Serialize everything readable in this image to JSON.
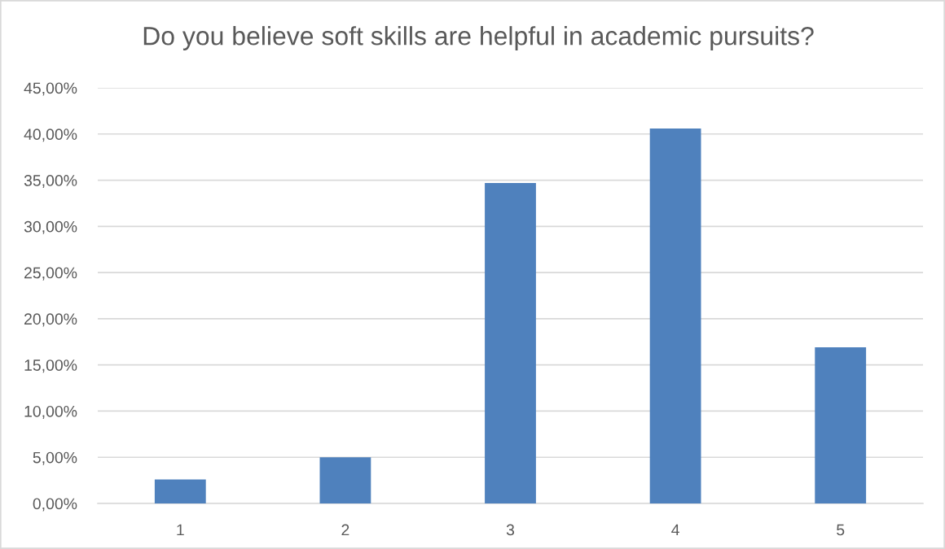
{
  "chart_data": {
    "type": "bar",
    "title": "Do you believe soft skills are helpful in academic pursuits?",
    "categories": [
      "1",
      "2",
      "3",
      "4",
      "5"
    ],
    "series": [
      {
        "color": "#4f81bd",
        "values": [
          2.6,
          5.0,
          34.7,
          40.6,
          16.9
        ]
      }
    ],
    "ylim": [
      0,
      45
    ],
    "yticks": [
      {
        "value": 0,
        "label": "0,00%"
      },
      {
        "value": 5,
        "label": "5,00%"
      },
      {
        "value": 10,
        "label": "10,00%"
      },
      {
        "value": 15,
        "label": "15,00%"
      },
      {
        "value": 20,
        "label": "20,00%"
      },
      {
        "value": 25,
        "label": "25,00%"
      },
      {
        "value": 30,
        "label": "30,00%"
      },
      {
        "value": 35,
        "label": "35,00%"
      },
      {
        "value": 40,
        "label": "40,00%"
      },
      {
        "value": 45,
        "label": "45,00%"
      }
    ],
    "grid": "y"
  }
}
